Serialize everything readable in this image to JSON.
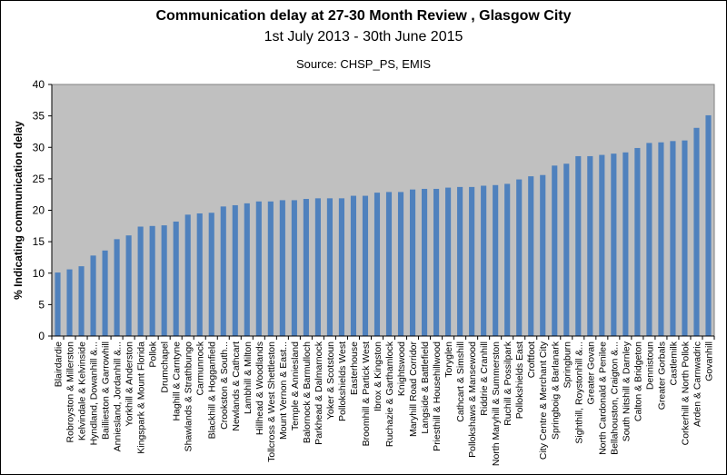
{
  "chart_data": {
    "type": "bar",
    "title": "Communication delay at 27-30 Month Review , Glasgow City",
    "subtitle": "1st July 2013 - 30th June 2015",
    "source": "Source: CHSP_PS, EMIS",
    "xlabel": "",
    "ylabel": "% Indicating communication delay",
    "ylim": [
      0,
      40
    ],
    "yticks": [
      0,
      5,
      10,
      15,
      20,
      25,
      30,
      35,
      40
    ],
    "grid": false,
    "bar_color": "#4f81bd",
    "plot_bg": "#c0c0c0",
    "categories": [
      "Blairdardie",
      "Robroyston & Millerston",
      "Kelvindale & Kelvinside",
      "Hyndland, Dowanhill &...",
      "Baillieston & Garrowhill",
      "Anniesland, Jordanhill &...",
      "Yorkhill & Anderston",
      "Kingspark & Mount Florida",
      "Pollok",
      "Drumchapel",
      "Haghill & Carntyne",
      "Shawlands & Strathbungo",
      "Carmunnock",
      "Blackhill & Hogganfield",
      "Crookston & South...",
      "Newlands & Cathcart",
      "Lambhill & Milton",
      "Hillhead & Woodlands",
      "Tollcross & West Shettleston",
      "Mount Vernon & East...",
      "Temple & Anniesland",
      "Balornock & Barmulloch",
      "Parkhead & Dalmarnock",
      "Yoker & Scotstoun",
      "Pollokshields West",
      "Easterhouse",
      "Broomhill & Partick West",
      "Ibrox & Kingston",
      "Ruchazie & Garthamlock",
      "Knightswood",
      "Maryhill Road Corridor",
      "Langside & Battlefield",
      "Priesthill & Househillwood",
      "Toryglen",
      "Cathcart & Simshill",
      "Pollokshaws & Mansewood",
      "Riddrie & Cranhill",
      "North Maryhill & Summerston",
      "Ruchill & Possilpark",
      "Pollokshields East",
      "Croftfoot",
      "City Centre & Merchant City",
      "Springboig & Barlanark",
      "Springburn",
      "Sighthill, Roystonhill &...",
      "Greater Govan",
      "North Cardonald & Penilee",
      "Bellahouston, Craigton &...",
      "South Nitshill & Darnley",
      "Calton & Bridgeton",
      "Dennistoun",
      "Greater Gorbals",
      "Castlemilk",
      "Corkerhill & North Pollok",
      "Arden & Carnwadric",
      "Govanhill"
    ],
    "values": [
      10.1,
      10.6,
      11.1,
      12.8,
      13.6,
      15.4,
      16.0,
      17.4,
      17.5,
      17.6,
      18.2,
      19.3,
      19.5,
      19.6,
      20.6,
      20.8,
      21.1,
      21.4,
      21.4,
      21.6,
      21.6,
      21.8,
      21.9,
      21.9,
      21.9,
      22.3,
      22.3,
      22.8,
      22.9,
      22.9,
      23.3,
      23.4,
      23.4,
      23.6,
      23.7,
      23.7,
      23.9,
      24.0,
      24.2,
      24.9,
      25.4,
      25.6,
      27.1,
      27.4,
      28.6,
      28.6,
      28.8,
      29.0,
      29.2,
      29.9,
      30.7,
      30.8,
      31.0,
      31.1,
      33.1,
      35.1
    ]
  }
}
